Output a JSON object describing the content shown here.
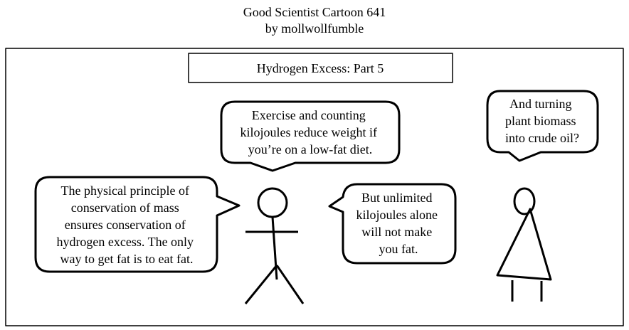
{
  "header": {
    "title": "Good Scientist Cartoon 641",
    "byline": "by mollwollfumble"
  },
  "panel": {
    "caption": "Hydrogen Excess: Part 5",
    "bubbles": {
      "left": [
        "The physical principle of",
        "conservation of mass",
        "ensures conservation of",
        "hydrogen excess. The only",
        "way to get fat is to eat fat."
      ],
      "top": [
        "Exercise and counting",
        "kilojoules reduce weight if",
        "you’re on a low-fat diet."
      ],
      "middle": [
        "But unlimited",
        "kilojoules alone",
        "will not make",
        "you fat."
      ],
      "right": [
        "And turning",
        "plant biomass",
        "into crude oil?"
      ]
    }
  }
}
